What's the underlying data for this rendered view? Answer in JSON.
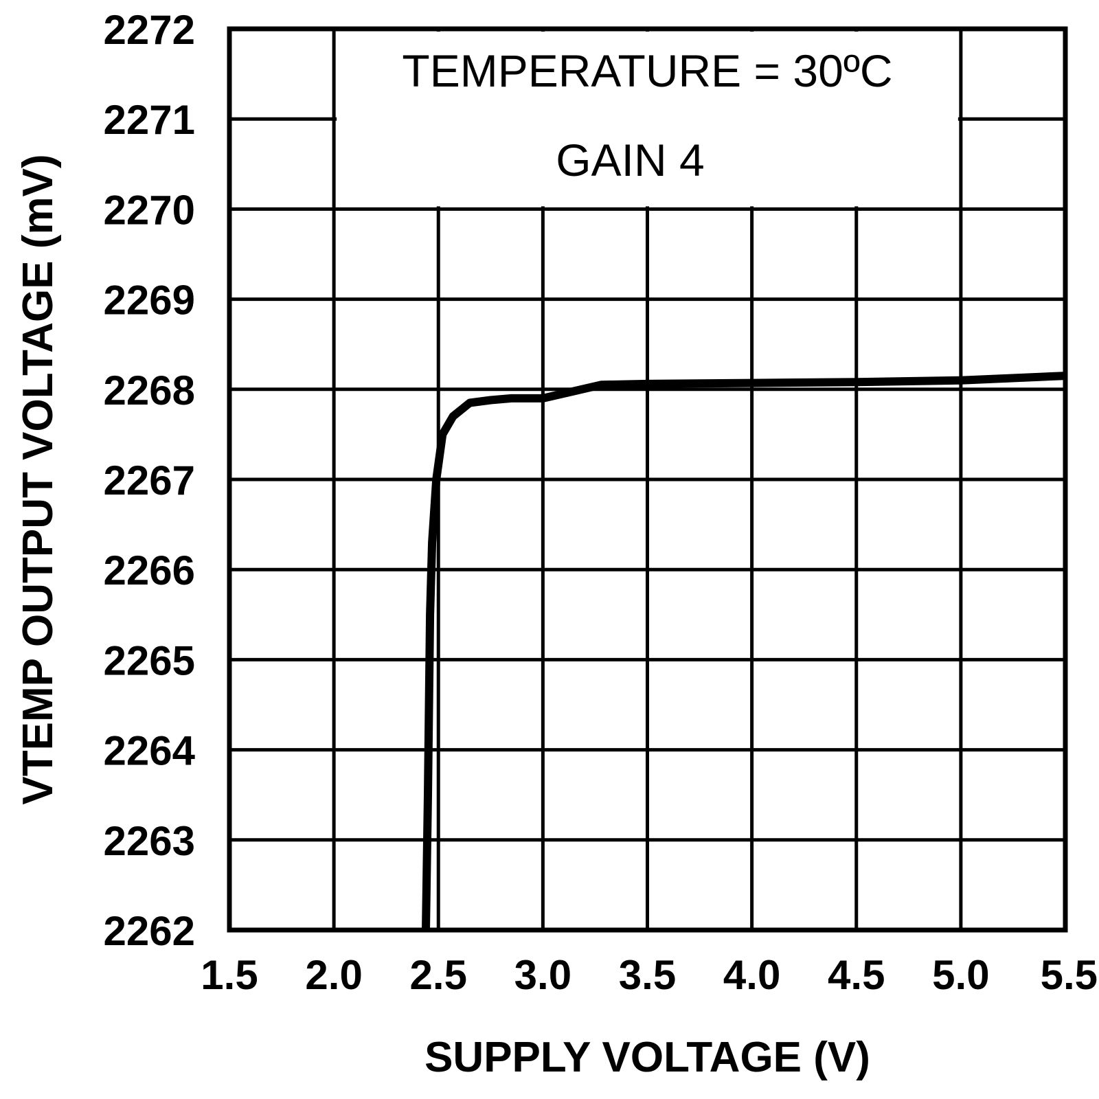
{
  "chart_data": {
    "type": "line",
    "xlabel": "SUPPLY VOLTAGE (V)",
    "ylabel": "VTEMP OUTPUT VOLTAGE (mV)",
    "xlim": [
      1.5,
      5.5
    ],
    "ylim": [
      2262,
      2272
    ],
    "x_ticks": [
      "1.5",
      "2.0",
      "2.5",
      "3.0",
      "3.5",
      "4.0",
      "4.5",
      "5.0",
      "5.5"
    ],
    "y_ticks": [
      "2262",
      "2263",
      "2264",
      "2265",
      "2266",
      "2267",
      "2268",
      "2269",
      "2270",
      "2271",
      "2272"
    ],
    "grid": true,
    "annotations": [
      "TEMPERATURE = 30ºC",
      "GAIN 4"
    ],
    "series": [
      {
        "color": "#000000",
        "x": [
          2.44,
          2.45,
          2.46,
          2.47,
          2.49,
          2.52,
          2.57,
          2.65,
          2.75,
          2.85,
          3.0,
          3.15,
          3.28,
          3.5,
          4.0,
          4.5,
          5.0,
          5.5
        ],
        "y": [
          2262.0,
          2263.5,
          2265.5,
          2266.3,
          2267.0,
          2267.5,
          2267.7,
          2267.85,
          2267.88,
          2267.9,
          2267.9,
          2267.98,
          2268.05,
          2268.06,
          2268.07,
          2268.08,
          2268.1,
          2268.15
        ]
      }
    ]
  }
}
